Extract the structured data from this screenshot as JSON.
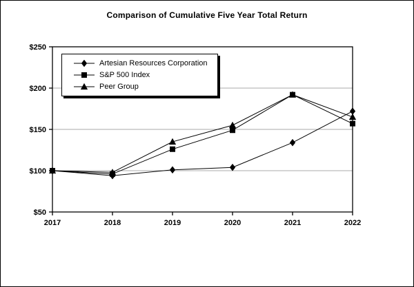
{
  "window": {
    "background": "#ffffff",
    "frame_border_color": "#000000"
  },
  "chart_data": {
    "type": "line",
    "title": "Comparison of Cumulative Five Year Total Return",
    "categories": [
      "2017",
      "2018",
      "2019",
      "2020",
      "2021",
      "2022"
    ],
    "series": [
      {
        "name": "Artesian Resources Corporation",
        "marker": "diamond",
        "color": "#000000",
        "values": [
          100,
          94,
          101,
          104,
          134,
          172
        ]
      },
      {
        "name": "S&P 500 Index",
        "marker": "square",
        "color": "#000000",
        "values": [
          100,
          96,
          126,
          149,
          192,
          157
        ]
      },
      {
        "name": "Peer Group",
        "marker": "triangle",
        "color": "#000000",
        "values": [
          100,
          98,
          135,
          155,
          192,
          165
        ]
      }
    ],
    "ylim": [
      50,
      250
    ],
    "y_tick_step": 50,
    "y_tick_labels": [
      "$50",
      "$100",
      "$150",
      "$200",
      "$250"
    ],
    "grid": "horizontal",
    "gridline_color": "#a8a8a8",
    "axis_color": "#000000",
    "legend_position": "top-left-inside"
  }
}
